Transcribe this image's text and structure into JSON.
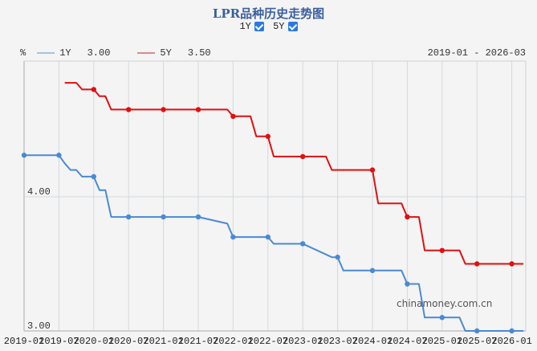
{
  "header": {
    "title": "LPR品种历史走势图",
    "toggle_1y_label": "1Y",
    "toggle_5y_label": "5Y",
    "toggle_1y_checked": true,
    "toggle_5y_checked": true
  },
  "legend": {
    "unit": "%",
    "series": [
      {
        "name": "1Y",
        "latest": "3.00",
        "color": "#4a8ad4"
      },
      {
        "name": "5Y",
        "latest": "3.50",
        "color": "#e01010"
      }
    ],
    "date_range": "2019-01 - 2026-03"
  },
  "watermark": "chinamoney.com.cn",
  "chart_data": {
    "type": "line",
    "title": "LPR品种历史走势图",
    "xlabel": "",
    "ylabel": "%",
    "ylim": [
      3.0,
      4.9
    ],
    "y_ticks": [
      "4.00",
      "3.00"
    ],
    "grid": true,
    "legend_position": "top-left",
    "x_tick_labels": [
      "2019-01",
      "2019-07",
      "2020-01",
      "2020-07",
      "2021-01",
      "2021-07",
      "2022-01",
      "2022-07",
      "2023-01",
      "2023-07",
      "2024-01",
      "2024-07",
      "2025-01",
      "2025-07",
      "2026-01"
    ],
    "series": [
      {
        "name": "1Y",
        "color": "#4a8ad4",
        "points": [
          [
            "2019-01",
            4.31
          ],
          [
            "2019-07",
            4.31
          ],
          [
            "2019-08",
            4.25
          ],
          [
            "2019-09",
            4.2
          ],
          [
            "2019-10",
            4.2
          ],
          [
            "2019-11",
            4.15
          ],
          [
            "2020-01",
            4.15
          ],
          [
            "2020-02",
            4.05
          ],
          [
            "2020-03",
            4.05
          ],
          [
            "2020-04",
            3.85
          ],
          [
            "2020-07",
            3.85
          ],
          [
            "2021-01",
            3.85
          ],
          [
            "2021-07",
            3.85
          ],
          [
            "2021-12",
            3.8
          ],
          [
            "2022-01",
            3.7
          ],
          [
            "2022-07",
            3.7
          ],
          [
            "2022-08",
            3.65
          ],
          [
            "2023-01",
            3.65
          ],
          [
            "2023-06",
            3.55
          ],
          [
            "2023-07",
            3.55
          ],
          [
            "2023-08",
            3.45
          ],
          [
            "2024-01",
            3.45
          ],
          [
            "2024-06",
            3.45
          ],
          [
            "2024-07",
            3.35
          ],
          [
            "2024-09",
            3.35
          ],
          [
            "2024-10",
            3.1
          ],
          [
            "2025-01",
            3.1
          ],
          [
            "2025-04",
            3.1
          ],
          [
            "2025-05",
            3.0
          ],
          [
            "2025-07",
            3.0
          ],
          [
            "2026-01",
            3.0
          ],
          [
            "2026-03",
            3.0
          ]
        ]
      },
      {
        "name": "5Y",
        "color": "#e01010",
        "points": [
          [
            "2019-08",
            4.85
          ],
          [
            "2019-10",
            4.85
          ],
          [
            "2019-11",
            4.8
          ],
          [
            "2020-01",
            4.8
          ],
          [
            "2020-02",
            4.75
          ],
          [
            "2020-03",
            4.75
          ],
          [
            "2020-04",
            4.65
          ],
          [
            "2020-07",
            4.65
          ],
          [
            "2021-01",
            4.65
          ],
          [
            "2021-07",
            4.65
          ],
          [
            "2021-12",
            4.65
          ],
          [
            "2022-01",
            4.6
          ],
          [
            "2022-04",
            4.6
          ],
          [
            "2022-05",
            4.45
          ],
          [
            "2022-07",
            4.45
          ],
          [
            "2022-08",
            4.3
          ],
          [
            "2023-01",
            4.3
          ],
          [
            "2023-05",
            4.3
          ],
          [
            "2023-06",
            4.2
          ],
          [
            "2024-01",
            4.2
          ],
          [
            "2024-02",
            3.95
          ],
          [
            "2024-06",
            3.95
          ],
          [
            "2024-07",
            3.85
          ],
          [
            "2024-09",
            3.85
          ],
          [
            "2024-10",
            3.6
          ],
          [
            "2025-01",
            3.6
          ],
          [
            "2025-04",
            3.6
          ],
          [
            "2025-05",
            3.5
          ],
          [
            "2025-07",
            3.5
          ],
          [
            "2026-01",
            3.5
          ],
          [
            "2026-03",
            3.5
          ]
        ]
      }
    ]
  }
}
